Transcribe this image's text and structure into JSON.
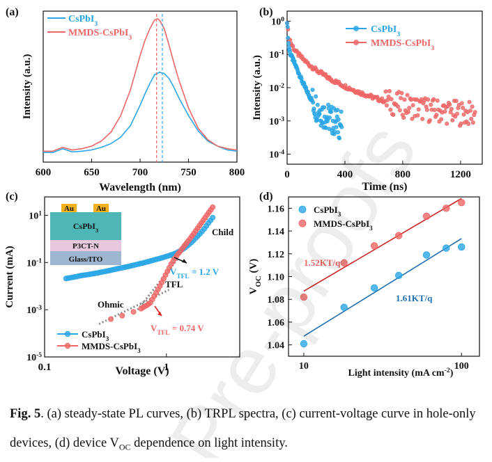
{
  "caption": {
    "fig_label": "Fig. 5",
    "text": ". (a) steady-state PL curves, (b) TRPL spectra, (c) current-voltage curve in hole-only devices, (d) device V",
    "voc_sub": "OC",
    "text_end": " dependence on light intensity."
  },
  "watermark": "Pre-proofs",
  "colors": {
    "cspbi3": "#2aa6e6",
    "mmds": "#ef6666",
    "mmds_dark": "#cc2222",
    "cspbi3_dark": "#1f6fb0"
  },
  "chart_data": [
    {
      "id": "a",
      "panel_label": "(a)",
      "type": "line",
      "xlabel": "Wavelength (nm)",
      "ylabel": "Intensity (a.u.)",
      "xlim": [
        600,
        800
      ],
      "x_ticks": [
        "600",
        "650",
        "700",
        "750",
        "800"
      ],
      "legend": [
        "CsPbI3",
        "MMDS-CsPbI3"
      ],
      "legend_position": "top-left",
      "series": [
        {
          "name": "CsPbI3",
          "x": [
            600,
            610,
            620,
            630,
            640,
            650,
            660,
            670,
            680,
            690,
            700,
            705,
            710,
            715,
            720,
            725,
            730,
            735,
            740,
            750,
            760,
            770,
            780,
            790,
            800
          ],
          "y": [
            0.01,
            0.01,
            0.04,
            0.015,
            0.02,
            0.03,
            0.05,
            0.08,
            0.13,
            0.22,
            0.38,
            0.47,
            0.55,
            0.62,
            0.64,
            0.63,
            0.59,
            0.52,
            0.44,
            0.3,
            0.18,
            0.1,
            0.06,
            0.03,
            0.02
          ]
        },
        {
          "name": "MMDS-CsPbI3",
          "x": [
            600,
            610,
            620,
            630,
            640,
            650,
            660,
            670,
            680,
            690,
            700,
            705,
            710,
            715,
            718,
            720,
            725,
            730,
            735,
            740,
            750,
            760,
            770,
            780,
            790,
            800
          ],
          "y": [
            0.02,
            0.02,
            0.05,
            0.03,
            0.04,
            0.06,
            0.1,
            0.17,
            0.3,
            0.5,
            0.77,
            0.89,
            0.98,
            1.05,
            1.06,
            1.05,
            0.98,
            0.85,
            0.71,
            0.58,
            0.36,
            0.2,
            0.11,
            0.06,
            0.04,
            0.03
          ]
        }
      ],
      "annotations": [
        {
          "type": "vline",
          "x": 717,
          "series": "MMDS-CsPbI3"
        },
        {
          "type": "vline",
          "x": 723,
          "series": "CsPbI3"
        }
      ]
    },
    {
      "id": "b",
      "panel_label": "(b)",
      "type": "scatter",
      "xlabel": "Time (ns)",
      "ylabel": "Intensity (a.u.)",
      "xlim": [
        0,
        1350
      ],
      "ylim": [
        5e-05,
        2
      ],
      "y_scale": "log",
      "x_ticks": [
        "0",
        "400",
        "800",
        "1200"
      ],
      "y_ticks": [
        "10-4",
        "10-3",
        "10-2",
        "10-1",
        "100"
      ],
      "legend": [
        "CsPbI3",
        "MMDS-CsPbI3"
      ],
      "legend_position": "top-right",
      "series": [
        {
          "name": "CsPbI3",
          "x": [
            0,
            10,
            20,
            40,
            60,
            80,
            100,
            130,
            160,
            200,
            240,
            280,
            320,
            360,
            380
          ],
          "y": [
            1,
            0.2,
            0.11,
            0.07,
            0.045,
            0.028,
            0.017,
            0.009,
            0.005,
            0.0028,
            0.0018,
            0.0013,
            0.001,
            0.0008,
            0.0008
          ]
        },
        {
          "name": "MMDS-CsPbI3",
          "x": [
            0,
            10,
            30,
            60,
            100,
            150,
            200,
            300,
            400,
            500,
            600,
            700,
            800,
            900,
            1000,
            1100,
            1200,
            1300
          ],
          "y": [
            1,
            0.35,
            0.2,
            0.12,
            0.08,
            0.05,
            0.034,
            0.018,
            0.011,
            0.0072,
            0.005,
            0.0037,
            0.003,
            0.0025,
            0.0021,
            0.0019,
            0.0017,
            0.0016
          ]
        }
      ]
    },
    {
      "id": "c",
      "panel_label": "(c)",
      "type": "scatter",
      "xlabel": "Voltage (V)",
      "ylabel": "Current (mA)",
      "x_scale": "log",
      "y_scale": "log",
      "xlim": [
        0.1,
        4
      ],
      "ylim": [
        1e-05,
        60
      ],
      "x_ticks": [
        "0.1",
        "1"
      ],
      "y_ticks": [
        "10-5",
        "10-3",
        "10-1",
        "101"
      ],
      "legend": [
        "CsPbI3",
        "MMDS-CsPbI3"
      ],
      "legend_position": "bottom-left",
      "inset_layers": [
        "Au",
        "Au",
        "CsPbI3",
        "P3CT-N",
        "Glass/ITO"
      ],
      "labels": [
        "Child",
        "TFL",
        "Ohmic"
      ],
      "vtfl_cspbi3": "VTFL = 1.2 V",
      "vtfl_mmds": "VTFL = 0.74 V",
      "series": [
        {
          "name": "CsPbI3",
          "x": [
            0.15,
            0.2,
            0.3,
            0.4,
            0.5,
            0.6,
            0.8,
            1.0,
            1.2,
            1.4,
            1.6,
            1.8,
            2.0,
            2.2,
            2.4
          ],
          "y": [
            0.021,
            0.028,
            0.04,
            0.055,
            0.07,
            0.088,
            0.13,
            0.18,
            0.25,
            0.4,
            0.7,
            1.3,
            2.3,
            4.5,
            8
          ]
        },
        {
          "name": "MMDS-CsPbI3",
          "x": [
            0.35,
            0.45,
            0.55,
            0.6,
            0.65,
            0.7,
            0.74,
            0.8,
            0.9,
            1.0,
            1.1,
            1.2,
            1.4,
            1.6,
            1.8,
            2.0,
            2.2,
            2.4
          ],
          "y": [
            0.0004,
            0.0006,
            0.00085,
            0.001,
            0.0013,
            0.0016,
            0.002,
            0.004,
            0.012,
            0.035,
            0.09,
            0.18,
            0.5,
            1.2,
            2.8,
            6,
            12,
            22
          ]
        }
      ]
    },
    {
      "id": "d",
      "panel_label": "(d)",
      "type": "scatter",
      "xlabel": "Light intensity (mA cm-2)",
      "ylabel": "VOC (V)",
      "x_scale": "log",
      "xlim": [
        8,
        130
      ],
      "ylim": [
        1.03,
        1.17
      ],
      "x_ticks": [
        "10",
        "100"
      ],
      "y_ticks": [
        "1.04",
        "1.06",
        "1.08",
        "1.10",
        "1.12",
        "1.14",
        "1.16"
      ],
      "legend": [
        "CsPbI3",
        "MMDS-CsPbI3"
      ],
      "legend_position": "top-left",
      "slope_labels": {
        "mmds": "1.52KT/q",
        "cspbi3": "1.61KT/q"
      },
      "series": [
        {
          "name": "CsPbI3",
          "x": [
            10,
            18,
            28,
            40,
            60,
            80,
            100
          ],
          "y": [
            1.041,
            1.073,
            1.09,
            1.101,
            1.119,
            1.125,
            1.126
          ]
        },
        {
          "name": "MMDS-CsPbI3",
          "x": [
            10,
            18,
            28,
            40,
            60,
            80,
            100
          ],
          "y": [
            1.082,
            1.112,
            1.127,
            1.136,
            1.153,
            1.16,
            1.165
          ]
        }
      ]
    }
  ]
}
